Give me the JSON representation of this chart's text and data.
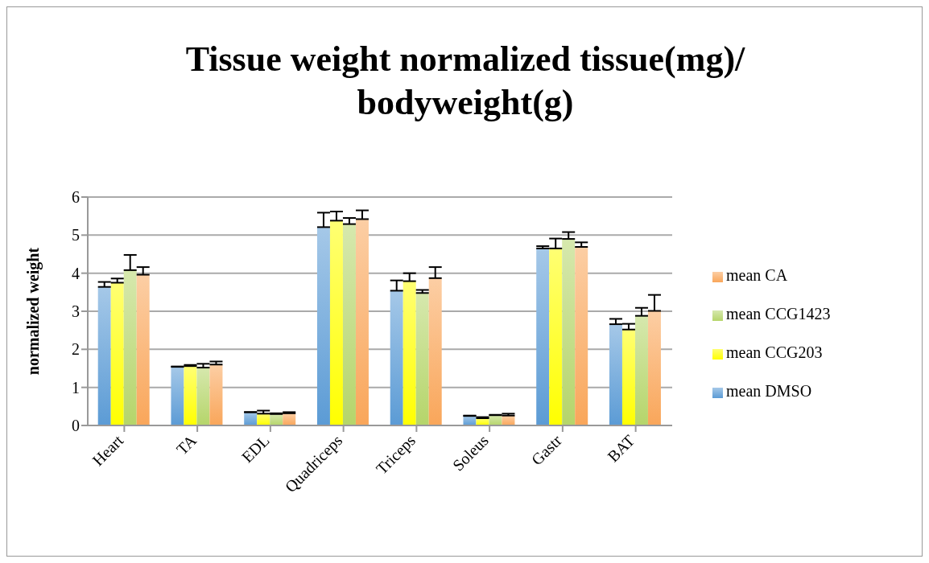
{
  "chart_data": {
    "type": "bar",
    "title": "Tissue weight normalized tissue(mg)/ bodyweight(g)",
    "ylabel": "normalized weight",
    "categories": [
      "Heart",
      "TA",
      "EDL",
      "Quadriceps",
      "Triceps",
      "Soleus",
      "Gastr",
      "BAT"
    ],
    "series": [
      {
        "name": "mean DMSO",
        "color": "#5b9bd5",
        "values": [
          3.64,
          1.54,
          0.35,
          5.21,
          3.54,
          0.25,
          4.65,
          2.66
        ],
        "errors": [
          [
            3.64,
            3.77
          ],
          [
            1.54,
            1.55
          ],
          [
            0.35,
            0.35
          ],
          [
            5.21,
            5.59
          ],
          [
            3.54,
            3.81
          ],
          [
            0.25,
            0.26
          ],
          [
            4.65,
            4.71
          ],
          [
            2.66,
            2.8
          ]
        ]
      },
      {
        "name": "mean CCG203",
        "color": "#ffff00",
        "values": [
          3.75,
          1.56,
          0.31,
          5.38,
          3.79,
          0.19,
          4.65,
          2.52
        ],
        "errors": [
          [
            3.75,
            3.86
          ],
          [
            1.56,
            1.59
          ],
          [
            0.31,
            0.39
          ],
          [
            5.38,
            5.62
          ],
          [
            3.79,
            4.0
          ],
          [
            0.19,
            0.22
          ],
          [
            4.65,
            4.91
          ],
          [
            2.52,
            2.67
          ]
        ]
      },
      {
        "name": "mean CCG1423",
        "color": "#b5d56a",
        "values": [
          4.08,
          1.52,
          0.3,
          5.29,
          3.48,
          0.27,
          4.9,
          2.88
        ],
        "errors": [
          [
            4.08,
            4.48
          ],
          [
            1.52,
            1.62
          ],
          [
            0.3,
            0.32
          ],
          [
            5.29,
            5.45
          ],
          [
            3.48,
            3.56
          ],
          [
            0.27,
            0.28
          ],
          [
            4.9,
            5.08
          ],
          [
            2.88,
            3.09
          ]
        ]
      },
      {
        "name": "mean CA",
        "color": "#f9a65a",
        "values": [
          3.96,
          1.6,
          0.32,
          5.42,
          3.87,
          0.26,
          4.69,
          3.01
        ],
        "errors": [
          [
            3.96,
            4.16
          ],
          [
            1.6,
            1.68
          ],
          [
            0.32,
            0.35
          ],
          [
            5.42,
            5.65
          ],
          [
            3.87,
            4.16
          ],
          [
            0.26,
            0.31
          ],
          [
            4.69,
            4.81
          ],
          [
            3.01,
            3.43
          ]
        ]
      }
    ],
    "ylim": [
      0,
      6
    ],
    "yticks": [
      0,
      1,
      2,
      3,
      4,
      5,
      6
    ],
    "grid": "y",
    "legend": "right"
  }
}
